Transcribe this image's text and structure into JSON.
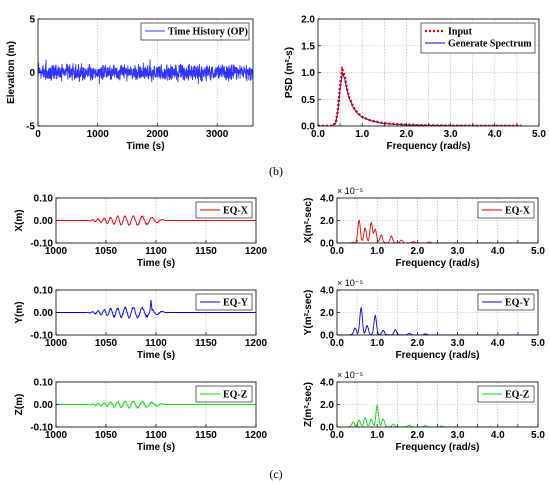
{
  "captions": [
    "(b)",
    "(c)"
  ],
  "chart_data": [
    {
      "id": "time-history",
      "type": "line",
      "xlabel": "Time (s)",
      "ylabel": "Elevation (m)",
      "xlim": [
        0,
        3600
      ],
      "ylim": [
        -5,
        5
      ],
      "xticks": [
        0,
        1000,
        2000,
        3000
      ],
      "yticks": [
        -5,
        0,
        5
      ],
      "series": [
        {
          "name": "Time History (OP)",
          "color": "#3333ff",
          "style": "noise",
          "amplitude": 0.8,
          "peak": 1.5,
          "seed": 7
        }
      ],
      "legend": "top-right"
    },
    {
      "id": "psd",
      "type": "line",
      "xlabel": "Frequency (rad/s)",
      "ylabel": "PSD (m²-s)",
      "xlim": [
        0,
        5
      ],
      "ylim": [
        0,
        2
      ],
      "xticks": [
        0,
        0.5,
        1.0,
        1.5,
        2.0,
        2.5,
        3.0,
        3.5,
        4.0,
        4.5,
        5.0
      ],
      "xticklabels": [
        "0.0",
        "",
        "1.0",
        "",
        "2.0",
        "",
        "3.0",
        "",
        "4.0",
        "",
        "5.0"
      ],
      "yticks": [
        0,
        0.5,
        1.0,
        1.5,
        2.0
      ],
      "yticklabels": [
        "0.0",
        "0.5",
        "1.0",
        "1.5",
        "2.0"
      ],
      "series": [
        {
          "name": "Input",
          "color": "#e00000",
          "dash": "2,2",
          "x": [
            0.0,
            0.3,
            0.4,
            0.45,
            0.5,
            0.55,
            0.6,
            0.65,
            0.7,
            0.8,
            0.9,
            1.0,
            1.2,
            1.4,
            1.6,
            2.0,
            2.5,
            3.0,
            3.5,
            4.0,
            4.6
          ],
          "y": [
            0.0,
            0.0,
            0.05,
            0.3,
            0.75,
            1.05,
            0.95,
            0.72,
            0.55,
            0.35,
            0.24,
            0.17,
            0.1,
            0.065,
            0.045,
            0.025,
            0.012,
            0.007,
            0.004,
            0.003,
            0.002
          ]
        },
        {
          "name": "Generate Spectrum",
          "color": "#0000ee",
          "x": [
            0.0,
            0.3,
            0.4,
            0.45,
            0.5,
            0.55,
            0.6,
            0.65,
            0.7,
            0.8,
            0.9,
            1.0,
            1.2,
            1.4,
            1.6,
            2.0,
            2.5,
            3.0,
            3.5,
            4.0,
            4.6
          ],
          "y": [
            0.0,
            0.0,
            0.05,
            0.28,
            0.7,
            0.98,
            0.9,
            0.7,
            0.53,
            0.34,
            0.23,
            0.16,
            0.1,
            0.06,
            0.04,
            0.02,
            0.01,
            0.006,
            0.004,
            0.003,
            0.002
          ]
        }
      ],
      "legend": "top-right"
    },
    {
      "id": "eq-x-time",
      "type": "line",
      "xlabel": "Time (s)",
      "ylabel": "X(m)",
      "xlim": [
        1000,
        1200
      ],
      "ylim": [
        -0.1,
        0.1
      ],
      "xticks": [
        1000,
        1050,
        1100,
        1150,
        1200
      ],
      "yticks": [
        -0.1,
        0,
        0.1
      ],
      "yticklabels": [
        "-0.10",
        "0.00",
        "0.10"
      ],
      "series": [
        {
          "name": "EQ-X",
          "color": "#ee0000",
          "style": "burst",
          "start": 1030,
          "end": 1123,
          "amplitude": 0.028,
          "seed": 11
        }
      ],
      "legend": "top-right"
    },
    {
      "id": "eq-x-psd",
      "type": "line",
      "xlabel": "Frequency (rad/s)",
      "ylabel": "X(m²-sec)",
      "exponent": "× 10⁻⁵",
      "xlim": [
        0,
        5
      ],
      "ylim": [
        0,
        4
      ],
      "xticks": [
        0,
        0.5,
        1.0,
        1.5,
        2.0,
        2.5,
        3.0,
        3.5,
        4.0,
        4.5,
        5.0
      ],
      "xticklabels": [
        "0.0",
        "",
        "1.0",
        "",
        "2.0",
        "",
        "3.0",
        "",
        "4.0",
        "",
        "5.0"
      ],
      "yticks": [
        0,
        2,
        4
      ],
      "yticklabels": [
        "0.0",
        "2.0",
        "4.0"
      ],
      "series": [
        {
          "name": "EQ-X",
          "color": "#ee0000",
          "style": "spectrum",
          "peaks": [
            [
              0.55,
              2.0
            ],
            [
              0.7,
              1.3
            ],
            [
              0.85,
              1.8
            ],
            [
              0.95,
              1.2
            ],
            [
              1.1,
              0.7
            ],
            [
              1.35,
              0.6
            ],
            [
              1.6,
              0.25
            ],
            [
              1.9,
              0.12
            ],
            [
              2.3,
              0.08
            ]
          ],
          "seed": 21
        }
      ],
      "legend": "top-right"
    },
    {
      "id": "eq-y-time",
      "type": "line",
      "xlabel": "Time (s)",
      "ylabel": "Y(m)",
      "xlim": [
        1000,
        1200
      ],
      "ylim": [
        -0.1,
        0.1
      ],
      "xticks": [
        1000,
        1050,
        1100,
        1150,
        1200
      ],
      "yticks": [
        -0.1,
        0,
        0.1
      ],
      "yticklabels": [
        "-0.10",
        "0.00",
        "0.10"
      ],
      "series": [
        {
          "name": "EQ-Y",
          "color": "#0000dd",
          "style": "burst",
          "start": 1030,
          "end": 1123,
          "amplitude": 0.03,
          "spike": [
            1095,
            0.055
          ],
          "seed": 13
        }
      ],
      "legend": "top-right"
    },
    {
      "id": "eq-y-psd",
      "type": "line",
      "xlabel": "Frequency (rad/s)",
      "ylabel": "Y(m²-sec)",
      "exponent": "× 10⁻⁵",
      "xlim": [
        0,
        5
      ],
      "ylim": [
        0,
        4
      ],
      "xticks": [
        0,
        0.5,
        1.0,
        1.5,
        2.0,
        2.5,
        3.0,
        3.5,
        4.0,
        4.5,
        5.0
      ],
      "xticklabels": [
        "0.0",
        "",
        "1.0",
        "",
        "2.0",
        "",
        "3.0",
        "",
        "4.0",
        "",
        "5.0"
      ],
      "yticks": [
        0,
        2,
        4
      ],
      "yticklabels": [
        "0.0",
        "2.0",
        "4.0"
      ],
      "series": [
        {
          "name": "EQ-Y",
          "color": "#0000dd",
          "style": "spectrum",
          "peaks": [
            [
              0.45,
              0.6
            ],
            [
              0.6,
              2.4
            ],
            [
              0.75,
              0.8
            ],
            [
              0.95,
              1.7
            ],
            [
              1.15,
              0.4
            ],
            [
              1.45,
              0.45
            ],
            [
              1.8,
              0.15
            ],
            [
              2.2,
              0.1
            ]
          ],
          "seed": 23
        }
      ],
      "legend": "top-right"
    },
    {
      "id": "eq-z-time",
      "type": "line",
      "xlabel": "Time (s)",
      "ylabel": "Z(m)",
      "xlim": [
        1000,
        1200
      ],
      "ylim": [
        -0.1,
        0.1
      ],
      "xticks": [
        1000,
        1050,
        1100,
        1150,
        1200
      ],
      "yticks": [
        -0.1,
        0,
        0.1
      ],
      "yticklabels": [
        "-0.10",
        "0.00",
        "0.10"
      ],
      "series": [
        {
          "name": "EQ-Z",
          "color": "#00dd00",
          "style": "burst",
          "start": 1030,
          "end": 1123,
          "amplitude": 0.02,
          "seed": 17
        }
      ],
      "legend": "top-right"
    },
    {
      "id": "eq-z-psd",
      "type": "line",
      "xlabel": "Frequency (rad/s)",
      "ylabel": "Z(m²-sec)",
      "exponent": "× 10⁻⁵",
      "xlim": [
        0,
        5
      ],
      "ylim": [
        0,
        4
      ],
      "xticks": [
        0,
        0.5,
        1.0,
        1.5,
        2.0,
        2.5,
        3.0,
        3.5,
        4.0,
        4.5,
        5.0
      ],
      "xticklabels": [
        "0.0",
        "",
        "1.0",
        "",
        "2.0",
        "",
        "3.0",
        "",
        "4.0",
        "",
        "5.0"
      ],
      "yticks": [
        0,
        2,
        4
      ],
      "yticklabels": [
        "0.0",
        "2.0",
        "4.0"
      ],
      "series": [
        {
          "name": "EQ-Z",
          "color": "#00dd00",
          "style": "spectrum",
          "peaks": [
            [
              0.4,
              0.4
            ],
            [
              0.55,
              0.6
            ],
            [
              0.7,
              0.8
            ],
            [
              0.85,
              0.7
            ],
            [
              1.0,
              1.9
            ],
            [
              1.15,
              0.7
            ],
            [
              1.4,
              0.25
            ],
            [
              1.8,
              0.15
            ],
            [
              2.2,
              0.12
            ],
            [
              2.6,
              0.08
            ]
          ],
          "seed": 29
        }
      ],
      "legend": "top-right"
    }
  ]
}
